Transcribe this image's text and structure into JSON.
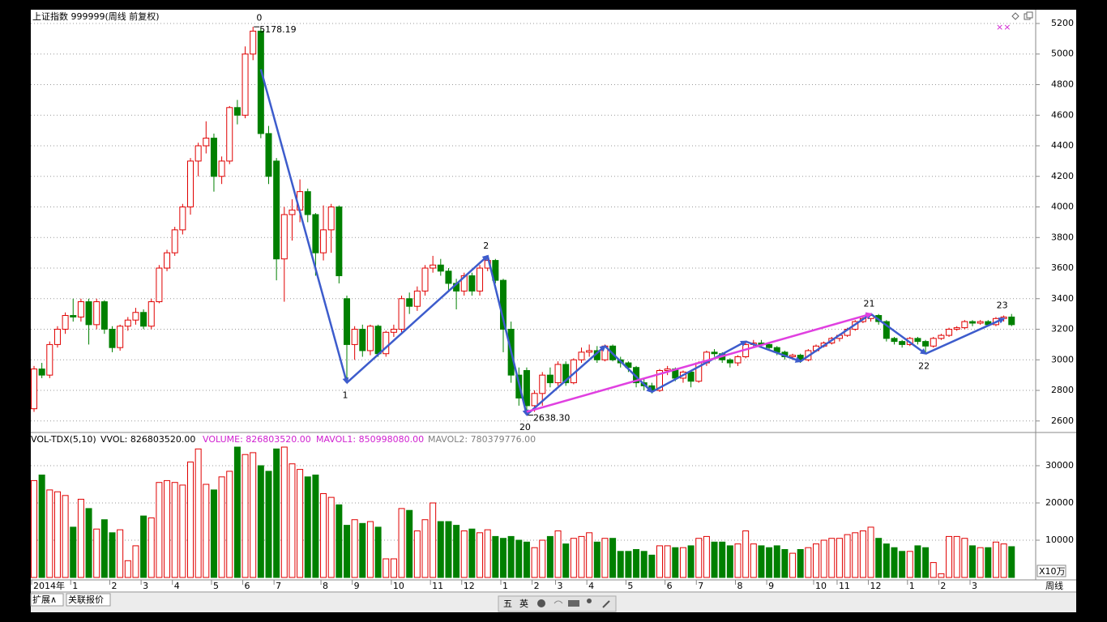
{
  "chart_data": {
    "type": "candlestick",
    "title": "上证指数 999999(周线 前复权)",
    "corner_marks": "××",
    "up_color": "#e00000",
    "down_color": "#008000",
    "ohlc": [
      [
        2680,
        2960,
        2660,
        2940
      ],
      [
        2940,
        2980,
        2880,
        2900
      ],
      [
        2900,
        3120,
        2880,
        3100
      ],
      [
        3100,
        3220,
        3080,
        3200
      ],
      [
        3200,
        3310,
        3170,
        3290
      ],
      [
        3290,
        3400,
        3250,
        3280
      ],
      [
        3280,
        3400,
        3250,
        3380
      ],
      [
        3380,
        3400,
        3100,
        3230
      ],
      [
        3230,
        3400,
        3200,
        3380
      ],
      [
        3380,
        3390,
        3170,
        3200
      ],
      [
        3200,
        3220,
        3050,
        3080
      ],
      [
        3080,
        3230,
        3060,
        3220
      ],
      [
        3220,
        3280,
        3190,
        3260
      ],
      [
        3260,
        3340,
        3230,
        3310
      ],
      [
        3310,
        3330,
        3200,
        3220
      ],
      [
        3220,
        3400,
        3200,
        3380
      ],
      [
        3380,
        3620,
        3370,
        3600
      ],
      [
        3600,
        3720,
        3580,
        3700
      ],
      [
        3700,
        3870,
        3680,
        3850
      ],
      [
        3850,
        4020,
        3820,
        4000
      ],
      [
        4000,
        4320,
        3950,
        4300
      ],
      [
        4300,
        4420,
        4200,
        4400
      ],
      [
        4400,
        4560,
        4350,
        4450
      ],
      [
        4450,
        4480,
        4100,
        4200
      ],
      [
        4200,
        4330,
        4150,
        4300
      ],
      [
        4300,
        4660,
        4280,
        4650
      ],
      [
        4650,
        4700,
        4540,
        4600
      ],
      [
        4600,
        5050,
        4580,
        5000
      ],
      [
        5000,
        5178.19,
        4960,
        5150
      ],
      [
        5150,
        5170,
        4450,
        4480
      ],
      [
        4480,
        4530,
        4150,
        4200
      ],
      [
        4300,
        4320,
        3520,
        3660
      ],
      [
        3660,
        4000,
        3380,
        3950
      ],
      [
        3950,
        4050,
        3780,
        3980
      ],
      [
        3980,
        4180,
        3900,
        4100
      ],
      [
        4100,
        4120,
        3900,
        3950
      ],
      [
        3950,
        3960,
        3550,
        3700
      ],
      [
        3700,
        4010,
        3650,
        3850
      ],
      [
        3850,
        4020,
        3700,
        4000
      ],
      [
        4000,
        4010,
        3500,
        3550
      ],
      [
        3400,
        3420,
        2850,
        3100
      ],
      [
        3100,
        3220,
        3000,
        3200
      ],
      [
        3200,
        3230,
        3020,
        3060
      ],
      [
        3060,
        3230,
        3030,
        3220
      ],
      [
        3220,
        3230,
        3020,
        3040
      ],
      [
        3040,
        3190,
        3020,
        3180
      ],
      [
        3180,
        3230,
        3150,
        3200
      ],
      [
        3200,
        3420,
        3180,
        3400
      ],
      [
        3400,
        3440,
        3300,
        3350
      ],
      [
        3350,
        3480,
        3320,
        3450
      ],
      [
        3450,
        3620,
        3420,
        3600
      ],
      [
        3600,
        3680,
        3570,
        3620
      ],
      [
        3620,
        3660,
        3550,
        3580
      ],
      [
        3580,
        3600,
        3450,
        3500
      ],
      [
        3500,
        3530,
        3330,
        3450
      ],
      [
        3450,
        3570,
        3420,
        3550
      ],
      [
        3550,
        3570,
        3420,
        3450
      ],
      [
        3450,
        3620,
        3420,
        3600
      ],
      [
        3600,
        3680,
        3580,
        3650
      ],
      [
        3650,
        3660,
        3500,
        3520
      ],
      [
        3520,
        3530,
        3050,
        3200
      ],
      [
        3200,
        3250,
        2850,
        2900
      ],
      [
        2900,
        2950,
        2700,
        2750
      ],
      [
        2930,
        2950,
        2638.3,
        2700
      ],
      [
        2700,
        2800,
        2660,
        2780
      ],
      [
        2780,
        2920,
        2700,
        2900
      ],
      [
        2900,
        2950,
        2820,
        2850
      ],
      [
        2850,
        2990,
        2830,
        2970
      ],
      [
        2970,
        2990,
        2830,
        2850
      ],
      [
        2850,
        3010,
        2840,
        3000
      ],
      [
        3000,
        3080,
        2980,
        3050
      ],
      [
        3050,
        3100,
        3020,
        3060
      ],
      [
        3060,
        3090,
        2980,
        3000
      ],
      [
        3000,
        3100,
        2990,
        3090
      ],
      [
        3090,
        3100,
        2990,
        3000
      ],
      [
        3000,
        3020,
        2950,
        2980
      ],
      [
        2980,
        2990,
        2920,
        2950
      ],
      [
        2950,
        2960,
        2820,
        2850
      ],
      [
        2850,
        2880,
        2800,
        2830
      ],
      [
        2830,
        2850,
        2780,
        2800
      ],
      [
        2800,
        2940,
        2790,
        2930
      ],
      [
        2930,
        2960,
        2900,
        2940
      ],
      [
        2940,
        2950,
        2860,
        2880
      ],
      [
        2880,
        2930,
        2850,
        2920
      ],
      [
        2920,
        2930,
        2820,
        2860
      ],
      [
        2860,
        2990,
        2850,
        2980
      ],
      [
        2980,
        3060,
        2960,
        3050
      ],
      [
        3050,
        3070,
        3020,
        3040
      ],
      [
        3040,
        3050,
        2980,
        3000
      ],
      [
        3000,
        3010,
        2950,
        2980
      ],
      [
        2980,
        3030,
        2960,
        3020
      ],
      [
        3020,
        3120,
        3010,
        3100
      ],
      [
        3100,
        3130,
        3080,
        3110
      ],
      [
        3110,
        3130,
        3090,
        3100
      ],
      [
        3100,
        3110,
        3060,
        3080
      ],
      [
        3080,
        3090,
        3030,
        3050
      ],
      [
        3050,
        3060,
        3000,
        3020
      ],
      [
        3020,
        3040,
        3000,
        3030
      ],
      [
        3030,
        3040,
        2980,
        3000
      ],
      [
        3000,
        3070,
        2990,
        3060
      ],
      [
        3060,
        3100,
        3050,
        3090
      ],
      [
        3090,
        3120,
        3080,
        3110
      ],
      [
        3110,
        3150,
        3100,
        3140
      ],
      [
        3140,
        3170,
        3120,
        3160
      ],
      [
        3160,
        3210,
        3150,
        3200
      ],
      [
        3200,
        3260,
        3190,
        3250
      ],
      [
        3250,
        3280,
        3240,
        3270
      ],
      [
        3270,
        3300,
        3250,
        3290
      ],
      [
        3290,
        3300,
        3230,
        3250
      ],
      [
        3250,
        3260,
        3120,
        3140
      ],
      [
        3140,
        3150,
        3100,
        3120
      ],
      [
        3120,
        3130,
        3080,
        3100
      ],
      [
        3100,
        3150,
        3090,
        3140
      ],
      [
        3140,
        3150,
        3100,
        3120
      ],
      [
        3120,
        3130,
        3040,
        3090
      ],
      [
        3090,
        3150,
        3080,
        3140
      ],
      [
        3140,
        3170,
        3130,
        3160
      ],
      [
        3160,
        3210,
        3150,
        3200
      ],
      [
        3200,
        3220,
        3190,
        3210
      ],
      [
        3210,
        3260,
        3200,
        3250
      ],
      [
        3250,
        3260,
        3220,
        3240
      ],
      [
        3240,
        3260,
        3230,
        3250
      ],
      [
        3250,
        3260,
        3220,
        3230
      ],
      [
        3230,
        3280,
        3220,
        3270
      ],
      [
        3270,
        3290,
        3250,
        3280
      ],
      [
        3280,
        3300,
        3220,
        3230
      ]
    ],
    "categories": [
      "2014年",
      null,
      null,
      null,
      null,
      "1",
      null,
      null,
      null,
      null,
      "2",
      null,
      null,
      null,
      "3",
      null,
      null,
      null,
      "4",
      null,
      null,
      null,
      null,
      "5",
      null,
      null,
      null,
      "6",
      null,
      null,
      null,
      "7",
      null,
      null,
      null,
      null,
      null,
      "8",
      null,
      null,
      null,
      "9",
      null,
      null,
      null,
      null,
      "10",
      null,
      null,
      null,
      null,
      "11",
      null,
      null,
      null,
      "12",
      null,
      null,
      null,
      null,
      "1",
      null,
      null,
      null,
      "2",
      null,
      null,
      "3",
      null,
      null,
      null,
      "4",
      null,
      null,
      null,
      null,
      "5",
      null,
      null,
      null,
      null,
      "6",
      null,
      null,
      null,
      "7",
      null,
      null,
      null,
      null,
      "8",
      null,
      null,
      null,
      "9",
      null,
      null,
      null,
      null,
      null,
      "10",
      null,
      null,
      "11",
      null,
      null,
      null,
      "12",
      null,
      null,
      null,
      null,
      "1",
      null,
      null,
      null,
      "2",
      null,
      null,
      null,
      "3",
      null,
      null,
      null,
      null,
      null
    ],
    "ylim": [
      2530,
      5290
    ],
    "yticks": [
      2600,
      2800,
      3000,
      3200,
      3400,
      3600,
      3800,
      4000,
      4200,
      4400,
      4600,
      4800,
      5000,
      5200
    ],
    "grid": true,
    "annotations": [
      {
        "text": "5178.19",
        "x": 28,
        "y": 5178.19
      },
      {
        "text": "2638.30",
        "x": 63,
        "y": 2638.3
      }
    ],
    "waves": [
      {
        "color": "#3d5ccc",
        "points": [
          {
            "x": 29,
            "y": 4900,
            "label": "0"
          },
          {
            "x": 40,
            "y": 2850,
            "label": "1"
          },
          {
            "x": 58,
            "y": 3680,
            "label": "2"
          },
          {
            "x": 63,
            "y": 2640,
            "label": "20"
          },
          {
            "x": 73,
            "y": 3090
          },
          {
            "x": 79,
            "y": 2790
          },
          {
            "x": 91,
            "y": 3120
          },
          {
            "x": 98,
            "y": 2990
          },
          {
            "x": 107,
            "y": 3300,
            "label": "21"
          },
          {
            "x": 114,
            "y": 3040,
            "label": "22"
          },
          {
            "x": 124,
            "y": 3270,
            "label": "23"
          }
        ]
      },
      {
        "color": "#e040e0",
        "points": [
          {
            "x": 63,
            "y": 2660
          },
          {
            "x": 107,
            "y": 3300
          }
        ]
      }
    ],
    "volume": {
      "legend": [
        {
          "text": "VOL-TDX(5,10)",
          "color": "#000000"
        },
        {
          "text": "VVOL: 826803520.00",
          "color": "#000000"
        },
        {
          "text": "VOLUME: 826803520.00",
          "color": "#d020d0"
        },
        {
          "text": "MAVOL1: 850998080.00",
          "color": "#d020d0"
        },
        {
          "text": "MAVOL2: 780379776.00",
          "color": "#808080"
        }
      ],
      "unit": "X10万",
      "ylim": [
        0,
        38700
      ],
      "yticks": [
        10000,
        20000,
        30000
      ],
      "values": [
        26000,
        27500,
        23500,
        23000,
        22000,
        13500,
        21000,
        18500,
        13000,
        15500,
        12000,
        12800,
        4500,
        8500,
        16500,
        16000,
        25500,
        26000,
        25500,
        24800,
        31000,
        34500,
        25000,
        23500,
        27000,
        28500,
        35000,
        33000,
        33500,
        30000,
        28500,
        34500,
        35000,
        30500,
        29000,
        27000,
        27500,
        22500,
        21500,
        19500,
        14000,
        15500,
        14500,
        15000,
        13500,
        5000,
        5000,
        18500,
        18000,
        12500,
        15500,
        20000,
        15000,
        15000,
        14000,
        12500,
        13000,
        12000,
        12800,
        11000,
        10500,
        11000,
        10000,
        9500,
        8000,
        10000,
        11000,
        12500,
        9000,
        10500,
        11000,
        12000,
        9500,
        10500,
        10500,
        7000,
        7000,
        7500,
        7000,
        6000,
        8500,
        8500,
        8000,
        8000,
        8500,
        10500,
        11000,
        9500,
        9500,
        8500,
        9000,
        12500,
        9000,
        8500,
        8000,
        8500,
        7500,
        6500,
        7500,
        8000,
        9000,
        10000,
        10500,
        10500,
        11500,
        12000,
        12500,
        13500,
        10500,
        9000,
        8000,
        7000,
        7000,
        8500,
        8000,
        4000,
        1000,
        11000,
        11000,
        10500,
        8500,
        8000,
        8000,
        9500,
        9000,
        8268
      ]
    },
    "period": "周线",
    "tabs": [
      "扩展∧",
      "关联报价"
    ],
    "toolbar": [
      "五",
      "英"
    ]
  }
}
